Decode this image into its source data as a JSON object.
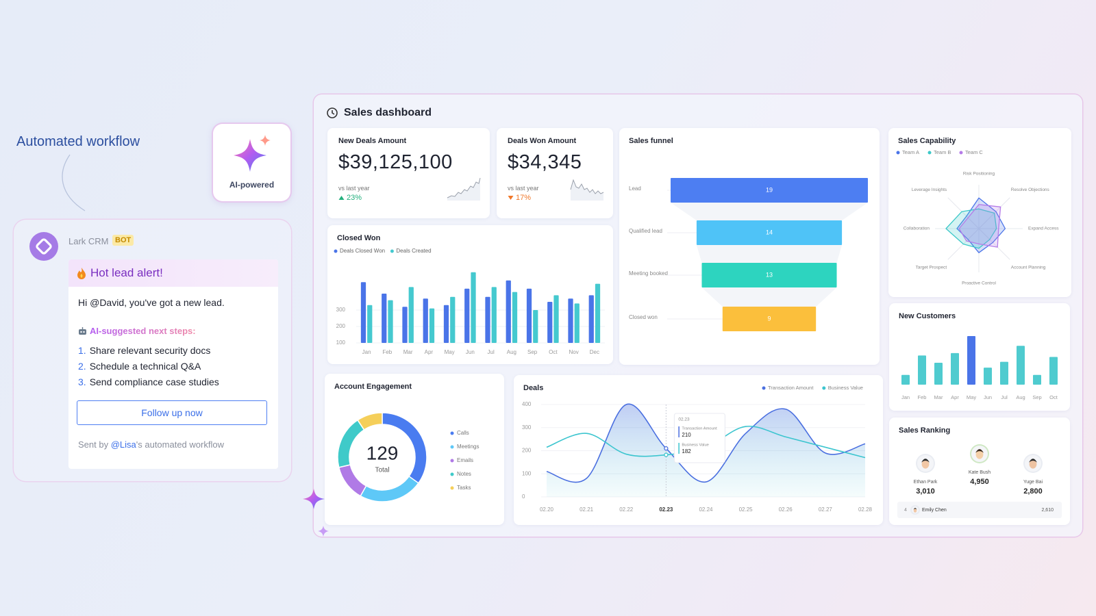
{
  "workflow_label": "Automated workflow",
  "ai_badge": "AI-powered",
  "message": {
    "app": "Lark CRM",
    "tag": "BOT",
    "alert": "Hot lead alert!",
    "greeting": "Hi @David, you've got a new lead.",
    "steps_heading": "AI-suggested next steps:",
    "steps": [
      {
        "number": "1.",
        "text": "Share relevant security docs"
      },
      {
        "number": "2.",
        "text": "Schedule a technical Q&A"
      },
      {
        "number": "3.",
        "text": "Send compliance case studies"
      }
    ],
    "button": "Follow up now",
    "footer": {
      "prefix": "Sent by",
      "mention": "@Lisa",
      "suffix": "'s automated workflow"
    }
  },
  "dashboard": {
    "title": "Sales dashboard",
    "kpis": [
      {
        "label": "New Deals Amount",
        "value": "$39,125,100",
        "comparison": "vs last year",
        "change": "23%",
        "direction": "up"
      },
      {
        "label": "Deals Won Amount",
        "value": "$34,345",
        "comparison": "vs last year",
        "change": "17%",
        "direction": "down"
      }
    ],
    "closed_won": {
      "type": "bar",
      "title": "Closed Won",
      "categories": [
        "Jan",
        "Feb",
        "Mar",
        "Apr",
        "May",
        "Jun",
        "Jul",
        "Aug",
        "Sep",
        "Oct",
        "Nov",
        "Dec"
      ],
      "series": [
        {
          "name": "Deals Closed Won",
          "color": "#4a74e8",
          "values": [
            470,
            400,
            320,
            370,
            330,
            430,
            380,
            480,
            430,
            350,
            370,
            390
          ]
        },
        {
          "name": "Deals Created",
          "color": "#45c9cf",
          "values": [
            330,
            360,
            440,
            310,
            380,
            530,
            440,
            410,
            300,
            390,
            340,
            460
          ]
        }
      ],
      "ylim": [
        100,
        600
      ],
      "yticks": [
        100,
        200,
        300
      ]
    },
    "funnel": {
      "type": "funnel",
      "title": "Sales funnel",
      "categories": [
        "Lead",
        "Qualified lead",
        "Meeting booked",
        "Closed won"
      ],
      "values": [
        19,
        14,
        13,
        9
      ],
      "colors": [
        "#4d7ef2",
        "#4fc3f7",
        "#2dd4bf",
        "#fbbf3c"
      ]
    },
    "capability": {
      "type": "radar",
      "title": "Sales Capability",
      "categories": [
        "Risk Positioning",
        "Resolve Objections",
        "Expand Access",
        "Account Planning",
        "Proactive Control",
        "Target Prospect",
        "Collaboration",
        "Leverage Insights"
      ],
      "series": [
        {
          "name": "Team A",
          "color": "#4a74e8",
          "values": [
            70,
            55,
            60,
            45,
            55,
            35,
            50,
            40
          ]
        },
        {
          "name": "Team B",
          "color": "#3cc8c8",
          "values": [
            45,
            50,
            40,
            35,
            45,
            50,
            75,
            55
          ]
        },
        {
          "name": "Team C",
          "color": "#b57be8",
          "values": [
            55,
            70,
            45,
            60,
            35,
            40,
            45,
            35
          ]
        }
      ],
      "rlim": [
        0,
        100
      ]
    },
    "new_customers": {
      "type": "bar",
      "title": "New Customers",
      "categories": [
        "Jan",
        "Feb",
        "Mar",
        "Apr",
        "May",
        "Jun",
        "Jul",
        "Aug",
        "Sep",
        "Oct"
      ],
      "values": [
        20,
        60,
        45,
        65,
        100,
        35,
        47,
        80,
        20,
        57
      ],
      "colors": [
        "#4fcbcf",
        "#4fcbcf",
        "#4fcbcf",
        "#4fcbcf",
        "#4a74e8",
        "#4fcbcf",
        "#4fcbcf",
        "#4fcbcf",
        "#4fcbcf",
        "#4fcbcf"
      ]
    },
    "engagement": {
      "type": "pie",
      "title": "Account Engagement",
      "total": 129,
      "total_label": "Total",
      "categories": [
        "Calls",
        "Meetings",
        "Emails",
        "Notes",
        "Tasks"
      ],
      "values": [
        45,
        30,
        17,
        25,
        12
      ],
      "colors": [
        "#4a7cf0",
        "#5ec8f7",
        "#b07ae6",
        "#3fcac9",
        "#f5cf5a"
      ]
    },
    "deals": {
      "type": "line",
      "title": "Deals",
      "categories": [
        "02.20",
        "02.21",
        "02.22",
        "02.23",
        "02.24",
        "02.25",
        "02.26",
        "02.27",
        "02.28"
      ],
      "series": [
        {
          "name": "Transaction Amount",
          "color": "#4a6fe0",
          "values": [
            110,
            80,
            400,
            210,
            65,
            275,
            380,
            190,
            230
          ]
        },
        {
          "name": "Business Value",
          "color": "#3cc5cf",
          "values": [
            215,
            275,
            185,
            182,
            215,
            305,
            260,
            215,
            170
          ]
        }
      ],
      "ylim": [
        0,
        400
      ],
      "yticks": [
        0,
        100,
        200,
        300,
        400
      ],
      "tooltip": "02.23"
    },
    "ranking": {
      "title": "Sales Ranking",
      "top": [
        {
          "name": "Ethan Park",
          "value": "3,010"
        },
        {
          "name": "Kate Bush",
          "value": "4,950"
        },
        {
          "name": "Yuge Bai",
          "value": "2,800"
        }
      ],
      "rows": [
        {
          "rank": "4",
          "name": "Emily Chen",
          "value": "2,610"
        }
      ]
    }
  }
}
